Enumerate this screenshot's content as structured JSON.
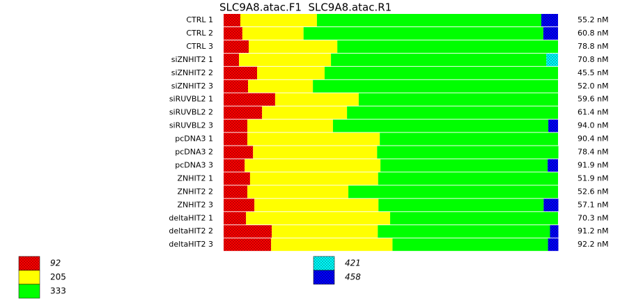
{
  "chart_data": {
    "type": "stacked_bar_100",
    "title": "SLC9A8.atac.F1  SLC9A8.atac.R1",
    "categories": [
      "CTRL 1",
      "CTRL 2",
      "CTRL 3",
      "siZNHIT2 1",
      "siZNHIT2 2",
      "siZNHIT2 3",
      "siRUVBL2 1",
      "siRUVBL2 2",
      "siRUVBL2 3",
      "pcDNA3 1",
      "pcDNA3 2",
      "pcDNA3 3",
      "ZNHIT2 1",
      "ZNHIT2 2",
      "ZNHIT2 3",
      "deltaHIT2 1",
      "deltaHIT2 2",
      "deltaHIT2 3"
    ],
    "row_labels": [
      "55.2 nM",
      "60.8 nM",
      "78.8 nM",
      "70.8 nM",
      "45.5 nM",
      "52.0 nM",
      "59.6 nM",
      "61.4 nM",
      "94.0 nM",
      "90.4 nM",
      "78.4 nM",
      "91.9 nM",
      "51.9 nM",
      "52.6 nM",
      "57.1 nM",
      "70.3 nM",
      "91.2 nM",
      "92.2 nM"
    ],
    "series": [
      {
        "name": "92",
        "color": "#ff0000",
        "hatched": true,
        "values": [
          5.0,
          5.6,
          7.5,
          4.6,
          10.0,
          7.3,
          15.4,
          11.5,
          7.1,
          7.1,
          8.8,
          6.3,
          7.9,
          7.1,
          9.2,
          6.7,
          14.4,
          14.2
        ]
      },
      {
        "name": "205",
        "color": "#ffff00",
        "hatched": false,
        "values": [
          22.9,
          18.3,
          26.5,
          27.5,
          20.2,
          19.4,
          25.0,
          25.4,
          25.6,
          39.6,
          37.1,
          40.6,
          38.3,
          30.2,
          37.1,
          43.1,
          31.7,
          36.3
        ]
      },
      {
        "name": "333",
        "color": "#00ff00",
        "hatched": false,
        "values": [
          67.1,
          71.7,
          66.0,
          64.4,
          69.8,
          73.3,
          59.6,
          63.1,
          64.4,
          53.3,
          54.2,
          50.0,
          53.8,
          62.7,
          49.4,
          50.2,
          51.5,
          46.5
        ]
      },
      {
        "name": "421",
        "color": "#00ffff",
        "hatched": true,
        "values": [
          0,
          0,
          0,
          3.5,
          0,
          0,
          0,
          0,
          0,
          0,
          0,
          0,
          0,
          0,
          0,
          0,
          0,
          0
        ]
      },
      {
        "name": "458",
        "color": "#0000ff",
        "hatched": true,
        "values": [
          5.0,
          4.4,
          0,
          0,
          0,
          0,
          0,
          0,
          2.9,
          0,
          0,
          3.1,
          0,
          0,
          4.4,
          0,
          2.5,
          3.1
        ]
      }
    ]
  }
}
